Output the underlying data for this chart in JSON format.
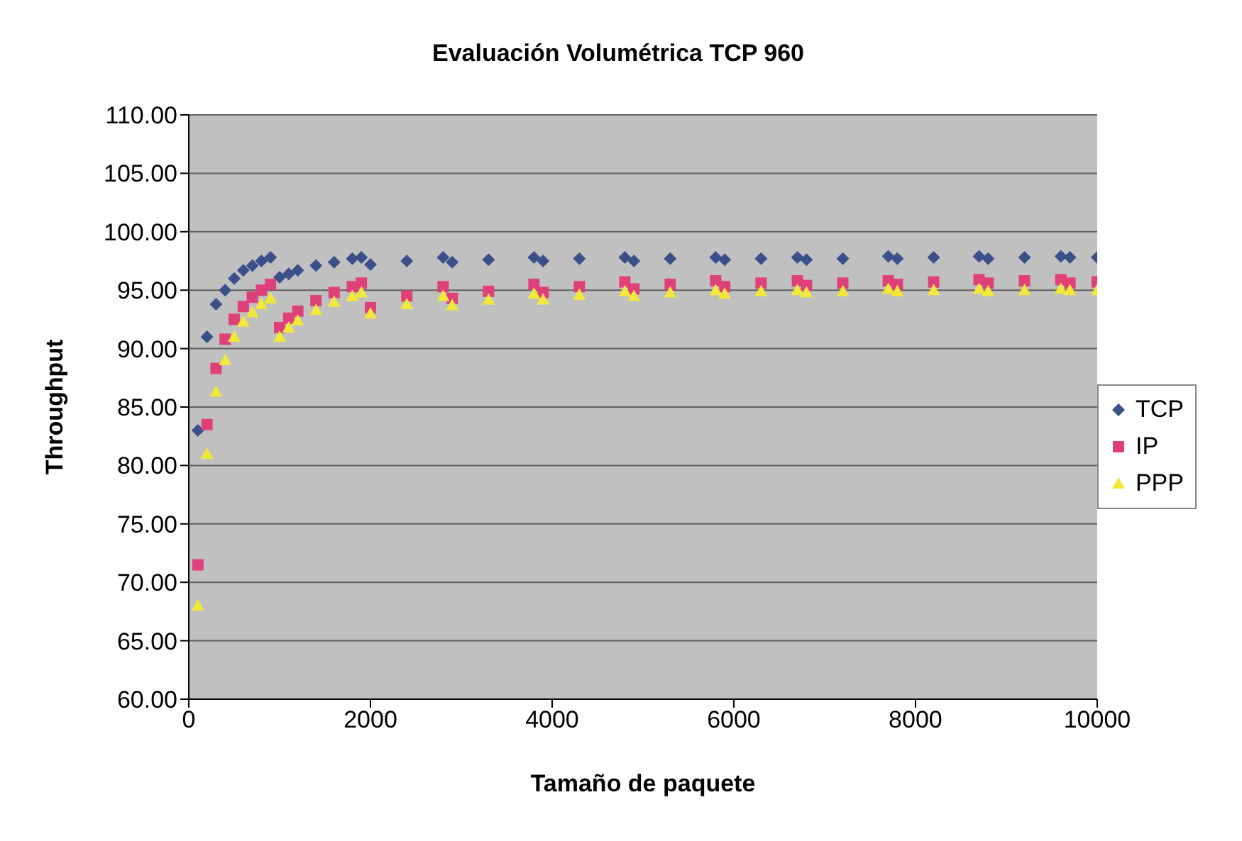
{
  "chart_data": {
    "type": "scatter",
    "title": "Evaluación Volumétrica TCP 960",
    "xlabel": "Tamaño de paquete",
    "ylabel": "Throughput",
    "x": [
      100,
      200,
      300,
      400,
      500,
      600,
      700,
      800,
      900,
      1000,
      1100,
      1200,
      1400,
      1600,
      1800,
      1900,
      2000,
      2400,
      2800,
      2900,
      3300,
      3800,
      3900,
      4300,
      4800,
      4900,
      5300,
      5800,
      5900,
      6300,
      6700,
      6800,
      7200,
      7700,
      7800,
      8200,
      8700,
      8800,
      9200,
      9600,
      9700,
      10000
    ],
    "series": [
      {
        "name": "TCP",
        "color": "#3b4f8a",
        "marker": "diamond",
        "values": [
          83,
          91,
          93.8,
          95,
          96,
          96.7,
          97.1,
          97.5,
          97.8,
          96.1,
          96.4,
          96.7,
          97.1,
          97.4,
          97.7,
          97.8,
          97.2,
          97.5,
          97.8,
          97.4,
          97.6,
          97.8,
          97.5,
          97.7,
          97.8,
          97.5,
          97.7,
          97.8,
          97.6,
          97.7,
          97.8,
          97.6,
          97.7,
          97.9,
          97.7,
          97.8,
          97.9,
          97.7,
          97.8,
          97.9,
          97.8,
          97.8
        ]
      },
      {
        "name": "IP",
        "color": "#e0407a",
        "marker": "square",
        "values": [
          71.5,
          83.5,
          88.3,
          90.8,
          92.5,
          93.6,
          94.4,
          95,
          95.5,
          91.8,
          92.6,
          93.2,
          94.1,
          94.8,
          95.3,
          95.6,
          93.5,
          94.5,
          95.3,
          94.3,
          94.9,
          95.5,
          94.8,
          95.3,
          95.7,
          95.1,
          95.5,
          95.8,
          95.3,
          95.6,
          95.8,
          95.4,
          95.6,
          95.8,
          95.5,
          95.7,
          95.9,
          95.6,
          95.8,
          95.9,
          95.6,
          95.7
        ]
      },
      {
        "name": "PPP",
        "color": "#f2e83a",
        "marker": "triangle",
        "values": [
          68,
          81,
          86.3,
          89,
          91,
          92.3,
          93.1,
          93.8,
          94.3,
          91,
          91.8,
          92.4,
          93.3,
          94,
          94.5,
          94.8,
          93,
          93.8,
          94.5,
          93.7,
          94.2,
          94.7,
          94.2,
          94.6,
          94.9,
          94.5,
          94.8,
          95,
          94.7,
          94.9,
          95,
          94.8,
          94.9,
          95.1,
          94.9,
          95,
          95.1,
          94.9,
          95,
          95.1,
          95,
          95
        ]
      }
    ],
    "xlim": [
      0,
      10000
    ],
    "xticks": [
      0,
      2000,
      4000,
      6000,
      8000,
      10000
    ],
    "ylim": [
      60,
      110
    ],
    "yticks": [
      {
        "value": 60,
        "label": "60.00"
      },
      {
        "value": 65,
        "label": "65.00"
      },
      {
        "value": 70,
        "label": "70.00"
      },
      {
        "value": 75,
        "label": "75.00"
      },
      {
        "value": 80,
        "label": "80.00"
      },
      {
        "value": 85,
        "label": "85.00"
      },
      {
        "value": 90,
        "label": "90.00"
      },
      {
        "value": 95,
        "label": "95.00"
      },
      {
        "value": 100,
        "label": "100.00"
      },
      {
        "value": 105,
        "label": "105.00"
      },
      {
        "value": 110,
        "label": "110.00"
      }
    ],
    "grid": "y",
    "legend": "right"
  }
}
